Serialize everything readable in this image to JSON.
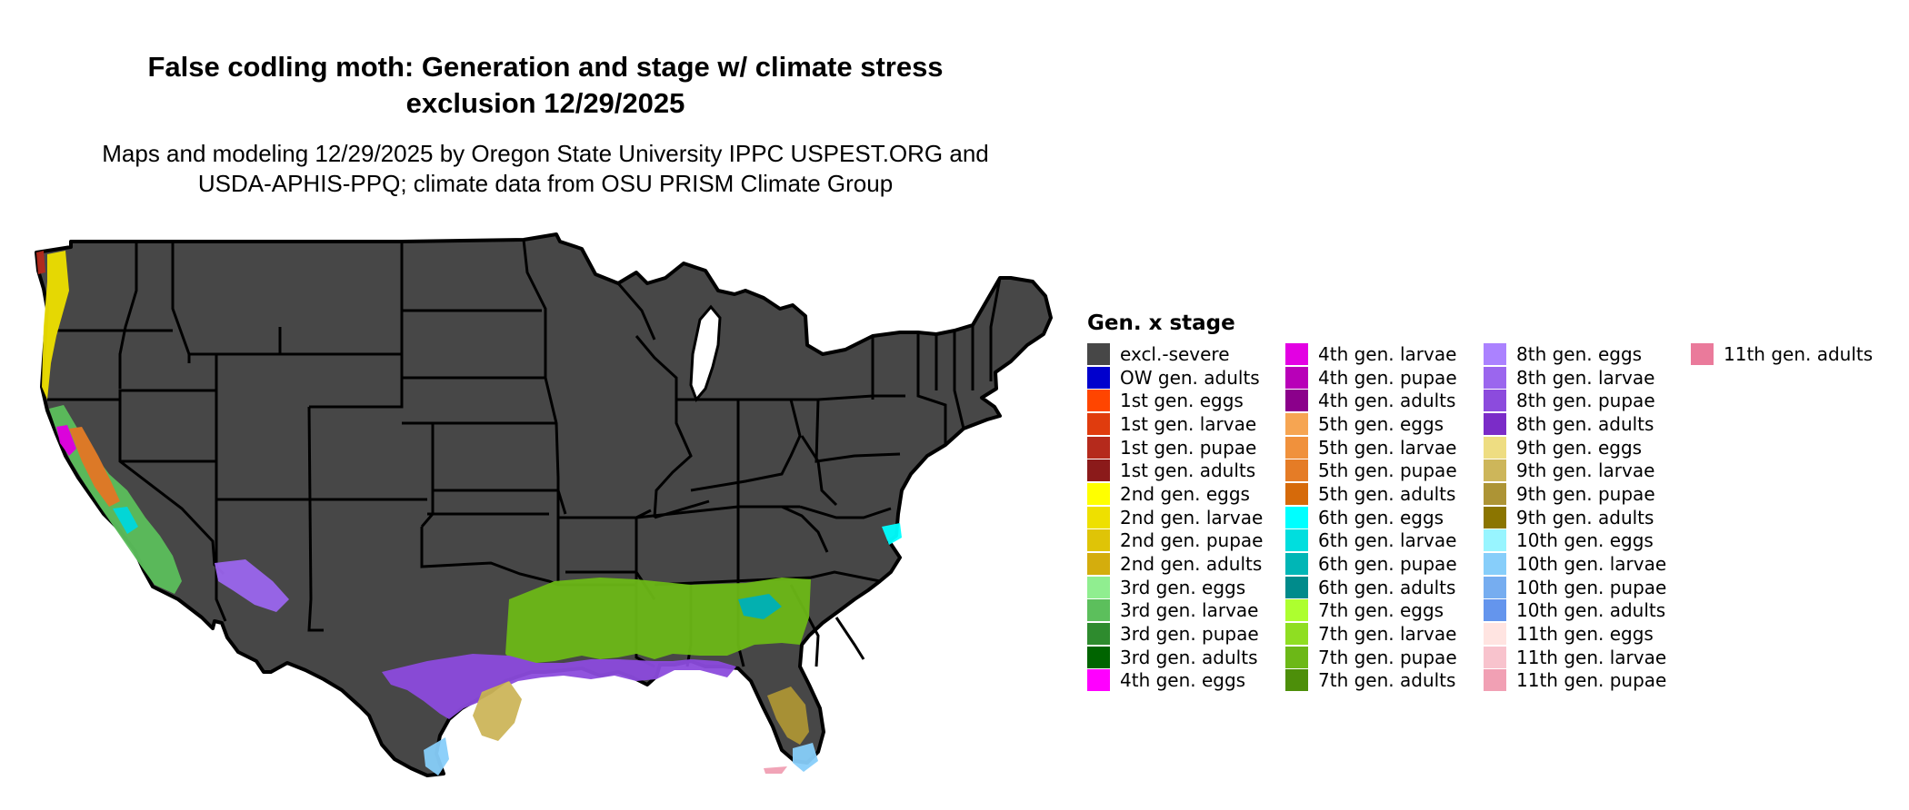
{
  "title_lines": [
    "False codling moth: Generation and stage w/ climate stress",
    "exclusion 12/29/2025"
  ],
  "subtitle_lines": [
    "Maps and modeling 12/29/2025 by Oregon State University IPPC USPEST.ORG and",
    "USDA-APHIS-PPQ; climate data from OSU PRISM Climate Group"
  ],
  "map": {
    "region": "Contiguous United States",
    "base_color": "#474747",
    "border_color": "#000000"
  },
  "legend": {
    "title": "Gen. x stage",
    "items": [
      {
        "label": "excl.-severe",
        "color": "#474747"
      },
      {
        "label": "OW gen. adults",
        "color": "#0000cd"
      },
      {
        "label": "1st gen. eggs",
        "color": "#ff4500"
      },
      {
        "label": "1st gen. larvae",
        "color": "#e03c0e"
      },
      {
        "label": "1st gen. pupae",
        "color": "#b52a1c"
      },
      {
        "label": "1st gen. adults",
        "color": "#8b1a1a"
      },
      {
        "label": "2nd gen. eggs",
        "color": "#ffff00"
      },
      {
        "label": "2nd gen. larvae",
        "color": "#eee000"
      },
      {
        "label": "2nd gen. pupae",
        "color": "#dfc407"
      },
      {
        "label": "2nd gen. adults",
        "color": "#d4ad0d"
      },
      {
        "label": "3rd gen. eggs",
        "color": "#90ee90"
      },
      {
        "label": "3rd gen. larvae",
        "color": "#5cbf5c"
      },
      {
        "label": "3rd gen. pupae",
        "color": "#2e8b2e"
      },
      {
        "label": "3rd gen. adults",
        "color": "#006400"
      },
      {
        "label": "4th gen. eggs",
        "color": "#ff00ff"
      },
      {
        "label": "4th gen. larvae",
        "color": "#e300e3"
      },
      {
        "label": "4th gen. pupae",
        "color": "#b800b8"
      },
      {
        "label": "4th gen. adults",
        "color": "#8b008b"
      },
      {
        "label": "5th gen. eggs",
        "color": "#f6a552"
      },
      {
        "label": "5th gen. larvae",
        "color": "#f0913c"
      },
      {
        "label": "5th gen. pupae",
        "color": "#e57c26"
      },
      {
        "label": "5th gen. adults",
        "color": "#d66a0a"
      },
      {
        "label": "6th gen. eggs",
        "color": "#00ffff"
      },
      {
        "label": "6th gen. larvae",
        "color": "#00dede"
      },
      {
        "label": "6th gen. pupae",
        "color": "#00b6b6"
      },
      {
        "label": "6th gen. adults",
        "color": "#008b8b"
      },
      {
        "label": "7th gen. eggs",
        "color": "#adff2f"
      },
      {
        "label": "7th gen. larvae",
        "color": "#8fde22"
      },
      {
        "label": "7th gen. pupae",
        "color": "#6cb817"
      },
      {
        "label": "7th gen. adults",
        "color": "#4d8f0a"
      },
      {
        "label": "8th gen. eggs",
        "color": "#ab82ff"
      },
      {
        "label": "8th gen. larvae",
        "color": "#9b66ee"
      },
      {
        "label": "8th gen. pupae",
        "color": "#8c4bdd"
      },
      {
        "label": "8th gen. adults",
        "color": "#7b2cc8"
      },
      {
        "label": "9th gen. eggs",
        "color": "#eedd82"
      },
      {
        "label": "9th gen. larvae",
        "color": "#cdb65a"
      },
      {
        "label": "9th gen. pupae",
        "color": "#ad9435"
      },
      {
        "label": "9th gen. adults",
        "color": "#8b7500"
      },
      {
        "label": "10th gen. eggs",
        "color": "#98f5ff"
      },
      {
        "label": "10th gen. larvae",
        "color": "#87cefa"
      },
      {
        "label": "10th gen. pupae",
        "color": "#76adf0"
      },
      {
        "label": "10th gen. adults",
        "color": "#6495ed"
      },
      {
        "label": "11th gen. eggs",
        "color": "#ffe4e1"
      },
      {
        "label": "11th gen. larvae",
        "color": "#f8c3cd"
      },
      {
        "label": "11th gen. pupae",
        "color": "#f1a0b4"
      },
      {
        "label": "11th gen. adults",
        "color": "#ea7a9b"
      }
    ]
  }
}
